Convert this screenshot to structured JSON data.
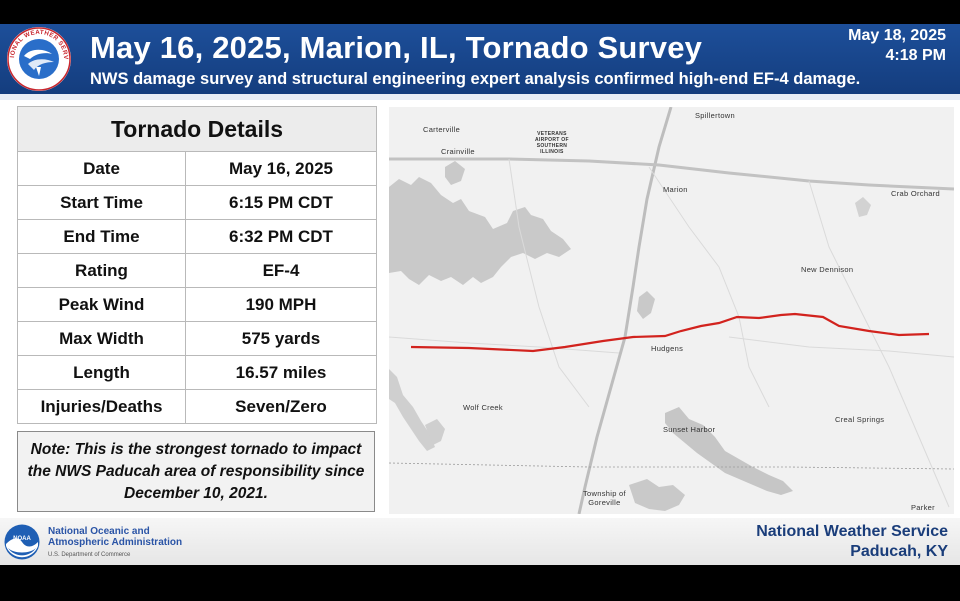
{
  "header": {
    "title": "May 16, 2025, Marion, IL, Tornado Survey",
    "subtitle": "NWS damage survey and structural engineering expert analysis confirmed high-end EF-4 damage.",
    "date": "May 18, 2025",
    "time": "4:18 PM",
    "logo_text": "NATIONAL WEATHER SERVICE"
  },
  "details": {
    "heading": "Tornado Details",
    "rows": [
      {
        "label": "Date",
        "value": "May 16, 2025"
      },
      {
        "label": "Start Time",
        "value": "6:15 PM CDT"
      },
      {
        "label": "End Time",
        "value": "6:32 PM CDT"
      },
      {
        "label": "Rating",
        "value": "EF-4"
      },
      {
        "label": "Peak Wind",
        "value": "190 MPH"
      },
      {
        "label": "Max Width",
        "value": "575 yards"
      },
      {
        "label": "Length",
        "value": "16.57 miles"
      },
      {
        "label": "Injuries/Deaths",
        "value": "Seven/Zero"
      }
    ]
  },
  "note": "Note: This is the strongest tornado to impact the NWS Paducah area of responsibility since December 10, 2021.",
  "map": {
    "track_color": "#d2231e",
    "towns": {
      "spillertown": "Spillertown",
      "carterville": "Carterville",
      "airport_1": "VETERANS",
      "airport_2": "AIRPORT OF",
      "airport_3": "SOUTHERN",
      "airport_4": "ILLINOIS",
      "crainville": "Crainville",
      "marion": "Marion",
      "crab_orchard": "Crab Orchard",
      "new_dennison": "New Dennison",
      "hudgens": "Hudgens",
      "wolf_creek": "Wolf Creek",
      "sunset_harbor": "Sunset Harbor",
      "creal_springs": "Creal Springs",
      "township_1": "Township of",
      "township_2": "Goreville",
      "parker": "Parker"
    }
  },
  "footer": {
    "noaa_logo_text": "NOAA",
    "noaa_line1": "National Oceanic and",
    "noaa_line2": "Atmospheric Administration",
    "noaa_line3": "U.S. Department of Commerce",
    "office_line1": "National Weather Service",
    "office_line2": "Paducah, KY"
  }
}
